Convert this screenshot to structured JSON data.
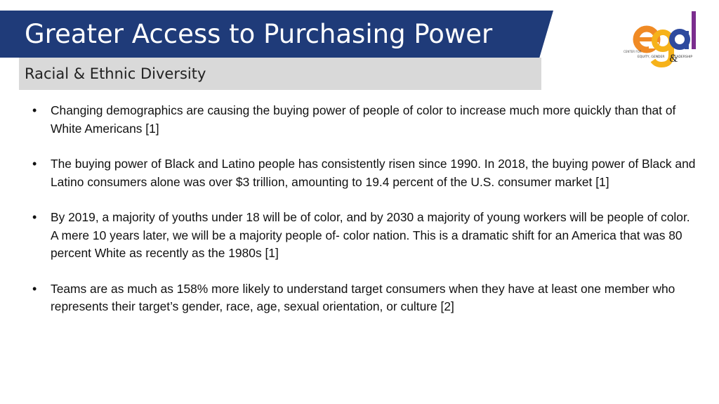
{
  "slide": {
    "title": "Greater Access to Purchasing Power",
    "subtitle": "Racial & Ethnic Diversity",
    "logo": {
      "letters": [
        "e",
        "g",
        "a",
        "l",
        "&"
      ],
      "small_text": [
        "CENTER FOR",
        "EQUITY, GENDER",
        "LEADERSHIP"
      ],
      "colors": {
        "e": "#f08a24",
        "g": "#f6b21a",
        "a": "#2e4a9e",
        "l": "#7b2d8e",
        "ampersand": "#222222"
      }
    },
    "bullet_marker": "•",
    "bullets": [
      "Changing demographics are causing the buying power of people of color to increase much more quickly than that of White Americans [1]",
      "The buying power of Black and Latino people has consistently risen since 1990. In 2018, the buying power of Black and Latino consumers alone was over $3 trillion, amounting to 19.4 percent of the U.S. consumer market [1]",
      "By 2019, a majority of youths under 18 will be of color, and by 2030 a majority of young workers will be people of color. A mere 10 years later, we will be a majority people of- color nation. This is a dramatic shift for an America that was 80 percent White as recently as the 1980s [1]",
      "Teams are as much as 158% more likely to understand target consumers when they have at least one member who represents their target’s gender, race, age, sexual orientation, or culture [2]"
    ],
    "colors": {
      "title_bar": "#1f3b79",
      "subtitle_bar": "#d9d9d9"
    }
  }
}
